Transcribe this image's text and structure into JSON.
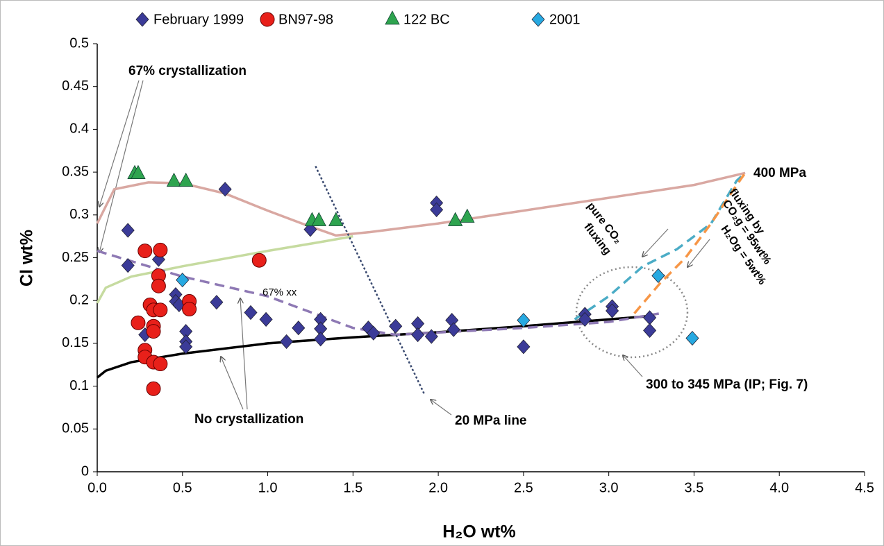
{
  "chart_data": {
    "type": "scatter",
    "xlabel": "H₂O wt%",
    "ylabel": "Cl  wt%",
    "xlim": [
      0,
      4.5
    ],
    "ylim": [
      0,
      0.5
    ],
    "xticks": [
      {
        "value": 0,
        "label": "0.0"
      },
      0.5,
      {
        "value": 1,
        "label": "1.0"
      },
      1.5,
      {
        "value": 2,
        "label": "2.0"
      },
      2.5,
      {
        "value": 3,
        "label": "3.0"
      },
      3.5,
      {
        "value": 4,
        "label": "4.0"
      },
      4.5
    ],
    "yticks": [
      0,
      0.05,
      0.1,
      0.15,
      0.2,
      0.25,
      0.3,
      0.35,
      0.4,
      0.45,
      0.5
    ],
    "legend": "top",
    "series": [
      {
        "name": "February 1999",
        "color": "#3b3b98",
        "marker": "diamond",
        "x": [
          0.18,
          0.18,
          0.36,
          0.28,
          0.46,
          0.46,
          0.48,
          0.52,
          0.52,
          0.52,
          0.75,
          0.7,
          0.9,
          0.99,
          1.11,
          1.18,
          1.25,
          1.31,
          1.31,
          1.31,
          1.59,
          1.62,
          1.75,
          1.88,
          1.88,
          1.96,
          1.99,
          1.99,
          2.08,
          2.09,
          2.5,
          2.86,
          2.86,
          3.02,
          3.02,
          3.24,
          3.24
        ],
        "values": [
          0.282,
          0.241,
          0.248,
          0.16,
          0.207,
          0.199,
          0.195,
          0.164,
          0.152,
          0.146,
          0.33,
          0.198,
          0.186,
          0.178,
          0.152,
          0.168,
          0.283,
          0.178,
          0.167,
          0.155,
          0.168,
          0.162,
          0.17,
          0.173,
          0.16,
          0.158,
          0.314,
          0.306,
          0.177,
          0.166,
          0.146,
          0.184,
          0.178,
          0.193,
          0.188,
          0.18,
          0.165
        ]
      },
      {
        "name": "BN97-98",
        "color": "#e8201a",
        "marker": "circle",
        "x": [
          0.28,
          0.37,
          0.36,
          0.36,
          0.31,
          0.33,
          0.37,
          0.24,
          0.33,
          0.33,
          0.28,
          0.28,
          0.33,
          0.37,
          0.33,
          0.54,
          0.54,
          0.95
        ],
        "values": [
          0.258,
          0.259,
          0.229,
          0.217,
          0.195,
          0.189,
          0.189,
          0.174,
          0.17,
          0.164,
          0.142,
          0.134,
          0.128,
          0.126,
          0.097,
          0.199,
          0.19,
          0.247
        ]
      },
      {
        "name": "122 BC",
        "color": "#2ea44f",
        "marker": "triangle",
        "x": [
          0.22,
          0.24,
          0.45,
          0.52,
          1.26,
          1.3,
          1.4,
          2.1,
          2.17
        ],
        "values": [
          0.348,
          0.348,
          0.339,
          0.339,
          0.293,
          0.293,
          0.293,
          0.293,
          0.297
        ]
      },
      {
        "name": "2001",
        "color": "#27a9e1",
        "marker": "diamond",
        "x": [
          0.5,
          2.5,
          3.29,
          3.49
        ],
        "values": [
          0.224,
          0.177,
          0.229,
          0.156
        ]
      }
    ],
    "curves": [
      {
        "color": "#d9a8a2",
        "dash": "none",
        "x": [
          0,
          0.1,
          0.3,
          0.5,
          0.75,
          1.0,
          1.2,
          1.4,
          1.6,
          2.0,
          2.5,
          3.0,
          3.5,
          3.8
        ],
        "values": [
          0.29,
          0.33,
          0.338,
          0.337,
          0.325,
          0.305,
          0.29,
          0.276,
          0.28,
          0.29,
          0.305,
          0.32,
          0.335,
          0.349
        ]
      },
      {
        "color": "#c6dba0",
        "dash": "none",
        "x": [
          0,
          0.05,
          0.2,
          0.5,
          1.0,
          1.3,
          1.5
        ],
        "values": [
          0.197,
          0.215,
          0.228,
          0.24,
          0.258,
          0.268,
          0.275
        ]
      },
      {
        "color": "#000000",
        "dash": "none",
        "x": [
          0,
          0.05,
          0.2,
          0.5,
          1.0,
          1.5,
          2.0,
          2.5,
          3.0,
          3.25
        ],
        "values": [
          0.11,
          0.118,
          0.128,
          0.138,
          0.15,
          0.157,
          0.163,
          0.17,
          0.178,
          0.182
        ]
      },
      {
        "color": "#8e79b4",
        "dash": "14 8",
        "x": [
          0,
          0.5,
          1.0,
          1.5,
          1.75,
          2.5,
          3.0,
          3.3
        ],
        "values": [
          0.258,
          0.228,
          0.205,
          0.168,
          0.16,
          0.168,
          0.175,
          0.185
        ]
      },
      {
        "color": "#4bacc6",
        "dash": "14 8",
        "x": [
          2.8,
          3.0,
          3.2,
          3.4,
          3.6,
          3.75,
          3.8
        ],
        "values": [
          0.178,
          0.205,
          0.24,
          0.26,
          0.29,
          0.34,
          0.349
        ]
      },
      {
        "color": "#f79646",
        "dash": "14 8",
        "x": [
          3.15,
          3.3,
          3.45,
          3.6,
          3.75,
          3.8
        ],
        "values": [
          0.185,
          0.22,
          0.25,
          0.29,
          0.335,
          0.349
        ]
      },
      {
        "color": "#3a4a70",
        "dash": "3 3",
        "x": [
          1.28,
          1.92
        ],
        "values": [
          0.357,
          0.09
        ]
      }
    ],
    "annotations": [
      "67% crystallization",
      "400 MPa",
      "No crystallization",
      "20 MPa line",
      "300 to 345 MPa (IP; Fig. 7)",
      "67% xx",
      "pure CO₂",
      "fluxing",
      "fluxing by",
      "CO₂g = 95wt%",
      "H₂Og = 5wt%"
    ]
  }
}
